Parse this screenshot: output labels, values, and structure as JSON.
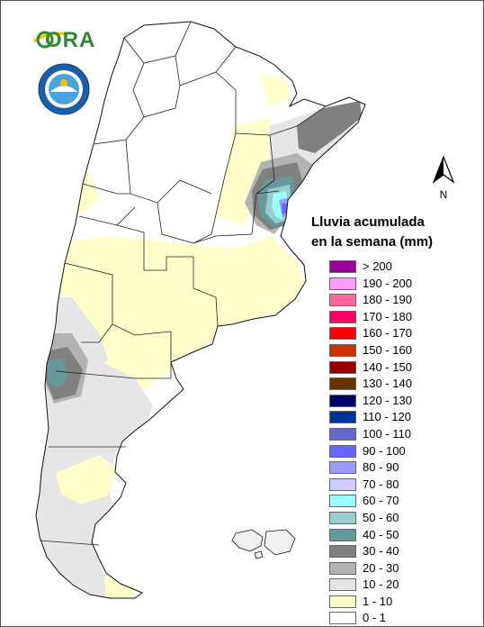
{
  "logo": {
    "text": "ORA"
  },
  "seal": {
    "name": "servicio-meteorologico-nacional-seal"
  },
  "north_arrow": {
    "label": "N"
  },
  "legend": {
    "title_line1": "Lluvia acumulada",
    "title_line2": "en la semana (mm)",
    "items": [
      {
        "label": "> 200",
        "color": "#990099"
      },
      {
        "label": "190 - 200",
        "color": "#ff99ff"
      },
      {
        "label": "180 - 190",
        "color": "#ff6699"
      },
      {
        "label": "170 - 180",
        "color": "#ff0066"
      },
      {
        "label": "160 - 170",
        "color": "#ff0000"
      },
      {
        "label": "150 - 160",
        "color": "#cc3300"
      },
      {
        "label": "140 - 150",
        "color": "#990000"
      },
      {
        "label": "130 - 140",
        "color": "#663300"
      },
      {
        "label": "120 - 130",
        "color": "#000066"
      },
      {
        "label": "110 - 120",
        "color": "#003399"
      },
      {
        "label": "100 - 110",
        "color": "#6666cc"
      },
      {
        "label": "90 - 100",
        "color": "#6666ff"
      },
      {
        "label": "80 - 90",
        "color": "#9999ff"
      },
      {
        "label": "70 - 80",
        "color": "#ccccff"
      },
      {
        "label": "60 - 70",
        "color": "#99ffff"
      },
      {
        "label": "50 - 60",
        "color": "#99cccc"
      },
      {
        "label": "40 - 50",
        "color": "#669999"
      },
      {
        "label": "30 - 40",
        "color": "#808080"
      },
      {
        "label": "20 - 30",
        "color": "#b3b3b3"
      },
      {
        "label": "10 - 20",
        "color": "#e6e6e6"
      },
      {
        "label": "1 - 10",
        "color": "#ffffcc"
      },
      {
        "label": "0 - 1",
        "color": "#ffffff"
      }
    ]
  }
}
